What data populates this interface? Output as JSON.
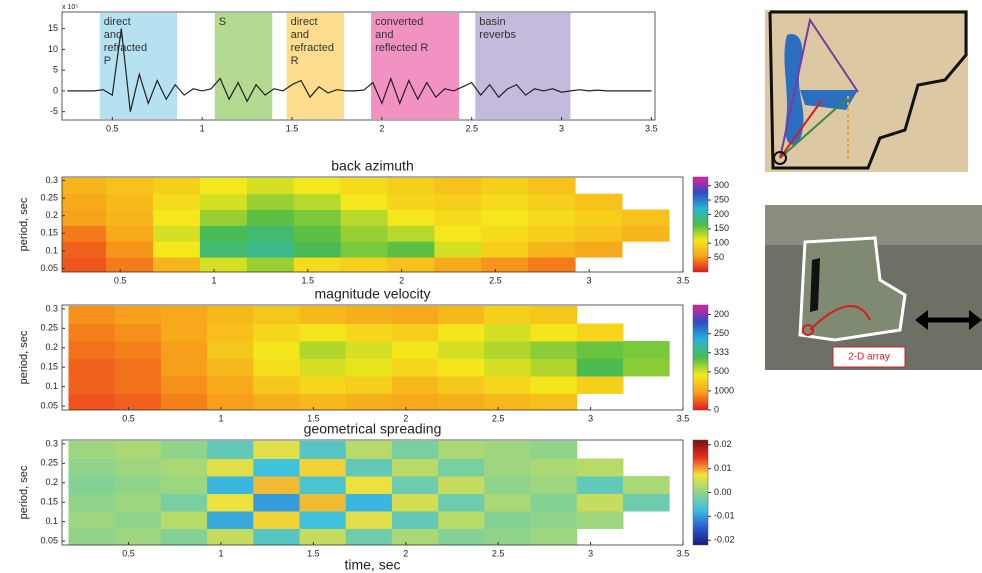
{
  "chart_data": [
    {
      "type": "line",
      "y_multiplier": "x 10⁵",
      "xlim": [
        0.22,
        3.52
      ],
      "xticks": [
        0.5,
        1,
        1.5,
        2,
        2.5,
        3,
        3.5
      ],
      "ylim": [
        -7,
        19
      ],
      "yticks": [
        15,
        10,
        5,
        0,
        -5
      ],
      "color": "#222222",
      "x": [
        0.25,
        0.3,
        0.35,
        0.4,
        0.45,
        0.5,
        0.55,
        0.6,
        0.65,
        0.7,
        0.75,
        0.8,
        0.85,
        0.9,
        0.95,
        1.0,
        1.05,
        1.1,
        1.15,
        1.2,
        1.25,
        1.3,
        1.35,
        1.4,
        1.45,
        1.5,
        1.55,
        1.6,
        1.65,
        1.7,
        1.75,
        1.8,
        1.85,
        1.9,
        1.95,
        2.0,
        2.05,
        2.1,
        2.15,
        2.2,
        2.25,
        2.3,
        2.35,
        2.4,
        2.45,
        2.5,
        2.55,
        2.6,
        2.65,
        2.7,
        2.75,
        2.8,
        2.85,
        2.9,
        2.95,
        3.0,
        3.05,
        3.1,
        3.15,
        3.2,
        3.25,
        3.3,
        3.35,
        3.4,
        3.45,
        3.5
      ],
      "values": [
        0,
        0,
        0,
        0,
        0.3,
        -1,
        15,
        -5,
        4,
        -3,
        2.5,
        -2,
        1.5,
        -1,
        0.5,
        0,
        0.5,
        3,
        -2,
        2,
        -2.5,
        1.5,
        -1,
        0.5,
        0,
        1.5,
        2.5,
        -1.5,
        1,
        -0.5,
        0.3,
        0,
        0,
        0.2,
        2,
        -3,
        3,
        -3,
        2.5,
        -2,
        2,
        -1.5,
        0.5,
        0,
        1,
        2,
        -1,
        1.5,
        -1.5,
        0.5,
        1.5,
        -1,
        0.5,
        0,
        0.5,
        -0.3,
        0,
        0.3,
        0,
        0.2,
        0,
        0,
        0,
        0,
        0,
        0
      ],
      "annotations": [
        {
          "lines": [
            "direct",
            "and",
            "refracted",
            "P"
          ],
          "x": [
            0.43,
            0.86
          ],
          "color": "#a9dcef"
        },
        {
          "lines": [
            "S"
          ],
          "x": [
            1.07,
            1.39
          ],
          "color": "#a4d47c"
        },
        {
          "lines": [
            "direct",
            "and",
            "refracted",
            "R"
          ],
          "x": [
            1.47,
            1.79
          ],
          "color": "#ffd77a"
        },
        {
          "lines": [
            "converted",
            "and",
            "reflected R"
          ],
          "x": [
            1.94,
            2.43
          ],
          "color": "#f07fb8"
        },
        {
          "lines": [
            "basin",
            "reverbs"
          ],
          "x": [
            2.52,
            3.05
          ],
          "color": "#b8aed6"
        }
      ]
    },
    {
      "type": "heatmap",
      "title": "back azimuth",
      "ylabel": "period, sec",
      "xlim": [
        0.19,
        3.5
      ],
      "xticks": [
        0.5,
        1,
        1.5,
        2,
        2.5,
        3,
        3.5
      ],
      "ylim": [
        0.04,
        0.31
      ],
      "yticks": [
        0.05,
        0.1,
        0.15,
        0.2,
        0.25,
        0.3
      ],
      "clim": [
        0,
        330
      ],
      "cticks": [
        50,
        100,
        150,
        200,
        250,
        300
      ],
      "colormap": [
        "#e8141c",
        "#f7a21b",
        "#f4e81c",
        "#4cbc47",
        "#27b6d9",
        "#2a4ec4",
        "#e81ca0"
      ],
      "x": [
        0.3,
        0.55,
        0.8,
        1.05,
        1.3,
        1.55,
        1.8,
        2.05,
        2.3,
        2.55,
        2.8,
        3.05,
        3.3
      ],
      "y": [
        0.06,
        0.105,
        0.15,
        0.195,
        0.24,
        0.285
      ],
      "z": [
        [
          25,
          40,
          70,
          120,
          140,
          100,
          90,
          80,
          60,
          50,
          40,
          null,
          null
        ],
        [
          30,
          50,
          110,
          180,
          190,
          170,
          150,
          160,
          120,
          90,
          70,
          60,
          null
        ],
        [
          40,
          60,
          120,
          170,
          180,
          160,
          140,
          130,
          110,
          100,
          90,
          80,
          70
        ],
        [
          55,
          70,
          110,
          140,
          160,
          150,
          130,
          110,
          100,
          110,
          100,
          90,
          80
        ],
        [
          60,
          75,
          100,
          120,
          140,
          130,
          110,
          95,
          90,
          100,
          90,
          80,
          null
        ],
        [
          70,
          80,
          90,
          110,
          120,
          110,
          100,
          90,
          80,
          90,
          80,
          null,
          null
        ]
      ]
    },
    {
      "type": "heatmap",
      "title": "magnitude velocity",
      "ylabel": "period, sec",
      "xlim": [
        0.14,
        3.5
      ],
      "xticks": [
        0.5,
        1,
        1.5,
        2,
        2.5,
        3,
        3.5
      ],
      "ylim": [
        0.04,
        0.31
      ],
      "yticks": [
        0.05,
        0.1,
        0.15,
        0.2,
        0.25,
        0.3
      ],
      "clim": [
        0,
        0.0055
      ],
      "cticks": [
        {
          "value": 0.005,
          "label": "200"
        },
        {
          "value": 0.004,
          "label": "250"
        },
        {
          "value": 0.003,
          "label": "333"
        },
        {
          "value": 0.002,
          "label": "500"
        },
        {
          "value": 0.001,
          "label": "1000"
        },
        0
      ],
      "colormap": [
        "#e8141c",
        "#f7a21b",
        "#f4e81c",
        "#4cbc47",
        "#27b6d9",
        "#2a4ec4",
        "#e81ca0"
      ],
      "x": [
        0.3,
        0.55,
        0.8,
        1.05,
        1.3,
        1.55,
        1.8,
        2.05,
        2.3,
        2.55,
        2.8,
        3.05,
        3.3
      ],
      "y": [
        0.06,
        0.105,
        0.15,
        0.195,
        0.24,
        0.285
      ],
      "z": [
        [
          0.0004,
          0.0005,
          0.0007,
          0.0009,
          0.0011,
          0.0012,
          0.0011,
          0.001,
          0.0011,
          0.0012,
          0.0013,
          null,
          null
        ],
        [
          0.0005,
          0.0006,
          0.0008,
          0.001,
          0.0014,
          0.0016,
          0.0015,
          0.0012,
          0.0014,
          0.0016,
          0.0018,
          0.0015,
          null
        ],
        [
          0.0005,
          0.0006,
          0.0009,
          0.0012,
          0.0017,
          0.002,
          0.0019,
          0.0016,
          0.0018,
          0.002,
          0.0022,
          0.0028,
          0.0024
        ],
        [
          0.0006,
          0.0007,
          0.0009,
          0.0014,
          0.0018,
          0.0022,
          0.002,
          0.0018,
          0.002,
          0.0022,
          0.0024,
          0.0026,
          0.0025
        ],
        [
          0.0007,
          0.0008,
          0.001,
          0.0013,
          0.0016,
          0.0018,
          0.0016,
          0.0015,
          0.0018,
          0.002,
          0.0018,
          0.0016,
          null
        ],
        [
          0.0008,
          0.0009,
          0.001,
          0.0012,
          0.0014,
          0.0012,
          0.0011,
          0.001,
          0.0012,
          0.0015,
          0.0014,
          null,
          null
        ]
      ]
    },
    {
      "type": "heatmap",
      "title": "geometrical spreading",
      "ylabel": "period, sec",
      "xlabel": "time, sec",
      "xlim": [
        0.14,
        3.5
      ],
      "xticks": [
        0.5,
        1,
        1.5,
        2,
        2.5,
        3,
        3.5
      ],
      "ylim": [
        0.04,
        0.31
      ],
      "yticks": [
        0.05,
        0.1,
        0.15,
        0.2,
        0.25,
        0.3
      ],
      "clim": [
        -0.022,
        0.022
      ],
      "cticks": [
        0.02,
        0.01,
        {
          "value": 0,
          "label": "0.00"
        },
        -0.01,
        -0.02
      ],
      "colormap": [
        "#1a1a7a",
        "#2a5ad0",
        "#3cc0e0",
        "#8fd48a",
        "#f2e23a",
        "#e8301c",
        "#7a1010"
      ],
      "x": [
        0.3,
        0.55,
        0.8,
        1.05,
        1.3,
        1.55,
        1.8,
        2.05,
        2.3,
        2.55,
        2.8,
        3.05,
        3.3
      ],
      "y": [
        0.06,
        0.105,
        0.15,
        0.195,
        0.24,
        0.285
      ],
      "z": [
        [
          0,
          0.001,
          -0.001,
          0.004,
          -0.005,
          0.004,
          -0.003,
          0.002,
          -0.001,
          0,
          0.001,
          null,
          null
        ],
        [
          0.001,
          0,
          0.003,
          -0.009,
          0.008,
          -0.007,
          0.006,
          -0.004,
          0.003,
          -0.001,
          0,
          0.001,
          null
        ],
        [
          0,
          0.001,
          -0.002,
          0.007,
          -0.01,
          0.009,
          -0.008,
          0.005,
          -0.003,
          0.002,
          -0.001,
          0.004,
          -0.003
        ],
        [
          -0.001,
          0,
          0.001,
          -0.008,
          0.009,
          -0.006,
          0.007,
          -0.003,
          0.004,
          0,
          0.001,
          -0.004,
          0.002
        ],
        [
          0,
          0.001,
          0.002,
          0.006,
          -0.007,
          0.008,
          -0.004,
          0.003,
          -0.002,
          0.001,
          0.002,
          0.003,
          null
        ],
        [
          0.001,
          0.002,
          0,
          -0.004,
          0.006,
          -0.005,
          0.003,
          -0.002,
          0.002,
          0.001,
          0,
          null,
          null
        ]
      ]
    }
  ],
  "inset_map": {
    "label": "2-D array"
  }
}
